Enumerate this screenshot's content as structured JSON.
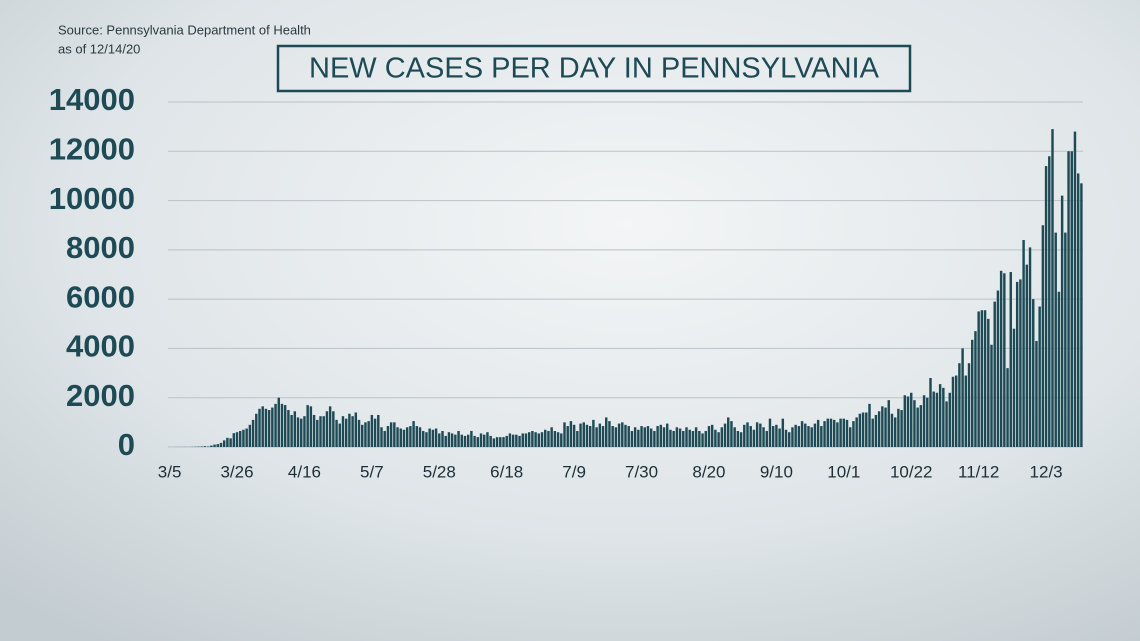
{
  "source": "Source: Pennsylvania Department of Health",
  "as_of": "as of 12/14/20",
  "chart_data": {
    "type": "bar",
    "title": "NEW CASES PER DAY IN PENNSYLVANIA",
    "color": "#1d4a55",
    "grid": true,
    "ylim": [
      0,
      14000
    ],
    "yticks": [
      0,
      2000,
      4000,
      6000,
      8000,
      10000,
      12000,
      14000
    ],
    "categories": [
      "3/5",
      null,
      null,
      null,
      null,
      null,
      null,
      null,
      null,
      null,
      null,
      null,
      null,
      null,
      null,
      null,
      null,
      null,
      null,
      null,
      null,
      "3/26",
      null,
      null,
      null,
      null,
      null,
      null,
      null,
      null,
      null,
      null,
      null,
      null,
      null,
      null,
      null,
      null,
      null,
      null,
      null,
      null,
      "4/16",
      null,
      null,
      null,
      null,
      null,
      null,
      null,
      null,
      null,
      null,
      null,
      null,
      null,
      null,
      null,
      null,
      null,
      null,
      null,
      null,
      "5/7",
      null,
      null,
      null,
      null,
      null,
      null,
      null,
      null,
      null,
      null,
      null,
      null,
      null,
      null,
      null,
      null,
      null,
      null,
      null,
      null,
      "5/28",
      null,
      null,
      null,
      null,
      null,
      null,
      null,
      null,
      null,
      null,
      null,
      null,
      null,
      null,
      null,
      null,
      null,
      null,
      null,
      null,
      "6/18",
      null,
      null,
      null,
      null,
      null,
      null,
      null,
      null,
      null,
      null,
      null,
      null,
      null,
      null,
      null,
      null,
      null,
      null,
      null,
      null,
      "7/9",
      null,
      null,
      null,
      null,
      null,
      null,
      null,
      null,
      null,
      null,
      null,
      null,
      null,
      null,
      null,
      null,
      null,
      null,
      null,
      null,
      "7/30",
      null,
      null,
      null,
      null,
      null,
      null,
      null,
      null,
      null,
      null,
      null,
      null,
      null,
      null,
      null,
      null,
      null,
      null,
      null,
      null,
      "8/20",
      null,
      null,
      null,
      null,
      null,
      null,
      null,
      null,
      null,
      null,
      null,
      null,
      null,
      null,
      null,
      null,
      null,
      null,
      null,
      null,
      "9/10",
      null,
      null,
      null,
      null,
      null,
      null,
      null,
      null,
      null,
      null,
      null,
      null,
      null,
      null,
      null,
      null,
      null,
      null,
      null,
      null,
      "10/1",
      null,
      null,
      null,
      null,
      null,
      null,
      null,
      null,
      null,
      null,
      null,
      null,
      null,
      null,
      null,
      null,
      null,
      null,
      null,
      null,
      "10/22",
      null,
      null,
      null,
      null,
      null,
      null,
      null,
      null,
      null,
      null,
      null,
      null,
      null,
      null,
      null,
      null,
      null,
      null,
      null,
      null,
      "11/12",
      null,
      null,
      null,
      null,
      null,
      null,
      null,
      null,
      null,
      null,
      null,
      null,
      null,
      null,
      null,
      null,
      null,
      null,
      null,
      null,
      "12/3",
      null,
      null,
      null,
      null,
      null,
      null,
      null,
      null,
      null,
      null,
      null
    ],
    "values": [
      2,
      0,
      2,
      2,
      3,
      4,
      3,
      7,
      12,
      16,
      22,
      33,
      20,
      57,
      96,
      117,
      165,
      268,
      372,
      351,
      561,
      600,
      650,
      700,
      750,
      900,
      1100,
      1350,
      1550,
      1650,
      1550,
      1500,
      1600,
      1750,
      2000,
      1750,
      1700,
      1500,
      1300,
      1450,
      1200,
      1150,
      1250,
      1700,
      1650,
      1300,
      1100,
      1250,
      1250,
      1450,
      1650,
      1450,
      1100,
      950,
      1250,
      1150,
      1350,
      1250,
      1400,
      1100,
      900,
      1000,
      1050,
      1300,
      1150,
      1300,
      800,
      650,
      850,
      1000,
      1000,
      800,
      750,
      700,
      800,
      850,
      1050,
      850,
      800,
      650,
      600,
      750,
      700,
      750,
      550,
      650,
      450,
      600,
      550,
      500,
      650,
      500,
      450,
      500,
      650,
      450,
      400,
      550,
      500,
      600,
      450,
      350,
      400,
      400,
      400,
      450,
      550,
      500,
      500,
      450,
      550,
      550,
      600,
      650,
      600,
      550,
      600,
      700,
      650,
      800,
      650,
      600,
      550,
      1000,
      850,
      1050,
      900,
      650,
      950,
      1000,
      900,
      850,
      1100,
      800,
      950,
      850,
      1200,
      1050,
      850,
      800,
      950,
      1000,
      900,
      850,
      650,
      800,
      700,
      850,
      800,
      850,
      750,
      650,
      850,
      900,
      800,
      950,
      700,
      650,
      800,
      750,
      650,
      800,
      700,
      650,
      800,
      650,
      550,
      650,
      850,
      900,
      700,
      600,
      800,
      950,
      1200,
      1050,
      800,
      650,
      600,
      900,
      1000,
      850,
      700,
      1000,
      950,
      800,
      650,
      1150,
      850,
      900,
      750,
      1150,
      700,
      600,
      800,
      900,
      850,
      1050,
      950,
      850,
      800,
      950,
      1100,
      850,
      1050,
      1150,
      1150,
      1100,
      1000,
      1150,
      1150,
      1100,
      800,
      1050,
      1200,
      1350,
      1400,
      1400,
      1750,
      1150,
      1300,
      1450,
      1650,
      1600,
      1900,
      1350,
      1200,
      1550,
      1500,
      2100,
      2050,
      2200,
      1900,
      1600,
      1700,
      2100,
      2000,
      2800,
      2250,
      2200,
      2550,
      2400,
      1850,
      2200,
      2850,
      2900,
      3400,
      4000,
      2900,
      3400,
      4350,
      4700,
      5500,
      5550,
      5550,
      5200,
      4150,
      5900,
      6350,
      7150,
      7050,
      3200,
      7100,
      4800,
      6700,
      6800,
      8400,
      7400,
      8100,
      6000,
      4300,
      5700,
      9000,
      11400,
      11800,
      12900,
      8700,
      6300,
      10200,
      8700,
      12000,
      12000,
      12800,
      11100,
      10700
    ]
  }
}
